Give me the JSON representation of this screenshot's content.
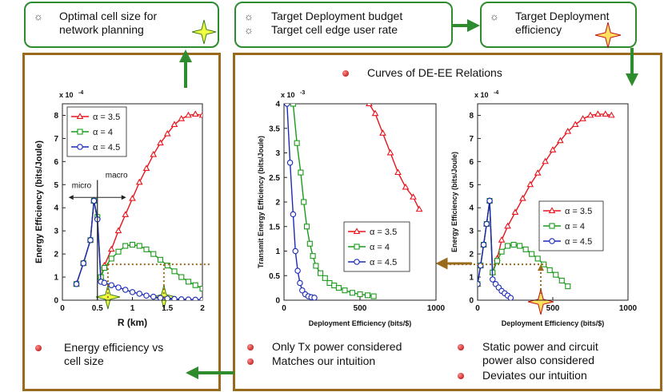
{
  "top_boxes": {
    "optimal": {
      "line1": "Optimal cell size for",
      "line2": "network planning"
    },
    "budget": {
      "line1": "Target Deployment budget",
      "line2": "Target cell edge user rate"
    },
    "efficiency": {
      "line1": "Target Deployment",
      "line2": "efficiency"
    }
  },
  "curves_title": "Curves of DE-EE Relations",
  "bullets": {
    "left": {
      "line1": "Energy efficiency vs",
      "line2": "cell size"
    },
    "mid1": "Only Tx power considered",
    "mid2": "Matches our intuition",
    "right1": {
      "line1": "Static power and circuit",
      "line2": "power also considered"
    },
    "right2": "Deviates our intuition"
  },
  "colors": {
    "green": "#2e8b2e",
    "brown": "#9a6a1c",
    "a35": "#e8141c",
    "a4": "#1a9a1a",
    "a45": "#1a2ab8"
  },
  "chart_data": [
    {
      "type": "line",
      "title": "",
      "xlabel": "R (km)",
      "ylabel": "Energy Efficiency (bits/Joule)",
      "y_scale_label": "x 10",
      "y_scale_exp": "-4",
      "xlim": [
        0,
        2
      ],
      "ylim": [
        0,
        8.5
      ],
      "xticks": [
        "0",
        "0.5",
        "1",
        "1.5",
        "2"
      ],
      "yticks": [
        "0",
        "1",
        "2",
        "3",
        "4",
        "5",
        "6",
        "7",
        "8"
      ],
      "annotations": [
        "micro",
        "macro"
      ],
      "series": [
        {
          "name": "α = 3.5",
          "x": [
            0.2,
            0.3,
            0.4,
            0.45,
            0.5,
            0.55,
            0.6,
            0.7,
            0.8,
            0.9,
            1.0,
            1.1,
            1.2,
            1.3,
            1.4,
            1.5,
            1.6,
            1.7,
            1.8,
            1.9,
            2.0
          ],
          "y": [
            0.7,
            1.6,
            2.6,
            4.3,
            3.6,
            1.0,
            1.5,
            2.2,
            3.0,
            3.7,
            4.4,
            5.1,
            5.7,
            6.3,
            6.8,
            7.2,
            7.6,
            7.85,
            8.0,
            8.05,
            8.0
          ]
        },
        {
          "name": "α = 4",
          "x": [
            0.2,
            0.3,
            0.4,
            0.45,
            0.5,
            0.55,
            0.6,
            0.7,
            0.8,
            0.9,
            1.0,
            1.1,
            1.2,
            1.3,
            1.4,
            1.5,
            1.6,
            1.7,
            1.8,
            1.9,
            2.0
          ],
          "y": [
            0.7,
            1.6,
            2.6,
            4.3,
            3.6,
            1.0,
            1.4,
            1.8,
            2.1,
            2.35,
            2.4,
            2.35,
            2.2,
            2.0,
            1.75,
            1.5,
            1.25,
            1.0,
            0.8,
            0.65,
            0.5
          ]
        },
        {
          "name": "α = 4.5",
          "x": [
            0.2,
            0.3,
            0.4,
            0.45,
            0.5,
            0.55,
            0.6,
            0.7,
            0.8,
            0.9,
            1.0,
            1.1,
            1.2,
            1.3,
            1.4,
            1.5,
            1.6,
            1.7,
            1.8,
            1.9,
            2.0
          ],
          "y": [
            0.7,
            1.6,
            2.6,
            4.3,
            3.5,
            0.8,
            0.75,
            0.65,
            0.55,
            0.45,
            0.35,
            0.28,
            0.2,
            0.15,
            0.1,
            0.07,
            0.05,
            0.04,
            0.03,
            0.02,
            0.02
          ]
        }
      ]
    },
    {
      "type": "line",
      "title": "",
      "xlabel": "Deployment Efficiency (bits/$)",
      "ylabel": "Transmit Energy Efficiency (bits/Joule)",
      "y_scale_label": "x 10",
      "y_scale_exp": "-3",
      "xlim": [
        0,
        1000
      ],
      "ylim": [
        0,
        4
      ],
      "xticks": [
        "0",
        "500",
        "1000"
      ],
      "yticks": [
        "0",
        "0.5",
        "1",
        "1.5",
        "2",
        "2.5",
        "3",
        "3.5",
        "4"
      ],
      "series": [
        {
          "name": "α = 3.5",
          "x": [
            560,
            600,
            650,
            700,
            750,
            800,
            850,
            890
          ],
          "y": [
            4.0,
            3.8,
            3.4,
            3.0,
            2.6,
            2.3,
            2.1,
            1.85
          ]
        },
        {
          "name": "α = 4",
          "x": [
            60,
            85,
            110,
            130,
            150,
            170,
            190,
            210,
            240,
            270,
            300,
            330,
            360,
            400,
            450,
            500,
            550,
            590
          ],
          "y": [
            4.0,
            3.2,
            2.6,
            2.0,
            1.5,
            1.15,
            0.9,
            0.7,
            0.55,
            0.45,
            0.35,
            0.3,
            0.25,
            0.2,
            0.15,
            0.12,
            0.1,
            0.08
          ]
        },
        {
          "name": "α = 4.5",
          "x": [
            20,
            40,
            60,
            75,
            90,
            105,
            120,
            140,
            160,
            180,
            200
          ],
          "y": [
            4.0,
            2.8,
            1.75,
            1.0,
            0.6,
            0.35,
            0.2,
            0.12,
            0.08,
            0.06,
            0.05
          ]
        }
      ]
    },
    {
      "type": "line",
      "title": "",
      "xlabel": "Deployment Efficiency (bits/$)",
      "ylabel": "Energy Efficiency (bits/Joule)",
      "y_scale_label": "x 10",
      "y_scale_exp": "-4",
      "xlim": [
        0,
        1000
      ],
      "ylim": [
        0,
        8.5
      ],
      "xticks": [
        "0",
        "500",
        "1000"
      ],
      "yticks": [
        "0",
        "1",
        "2",
        "3",
        "4",
        "5",
        "6",
        "7",
        "8"
      ],
      "series": [
        {
          "name": "α = 3.5",
          "x": [
            0,
            20,
            40,
            60,
            80,
            100,
            130,
            160,
            200,
            250,
            300,
            350,
            400,
            450,
            500,
            550,
            600,
            650,
            700,
            750,
            800,
            850,
            890
          ],
          "y": [
            0.7,
            1.5,
            2.4,
            3.3,
            4.3,
            1.2,
            1.8,
            2.6,
            3.2,
            3.8,
            4.4,
            5.0,
            5.5,
            6.0,
            6.5,
            6.9,
            7.3,
            7.6,
            7.85,
            8.0,
            8.05,
            8.05,
            8.0
          ]
        },
        {
          "name": "α = 4",
          "x": [
            0,
            20,
            40,
            60,
            80,
            100,
            130,
            160,
            200,
            240,
            280,
            320,
            360,
            400,
            440,
            480,
            520,
            560,
            600
          ],
          "y": [
            0.7,
            1.5,
            2.4,
            3.3,
            4.3,
            1.2,
            1.7,
            2.1,
            2.35,
            2.4,
            2.35,
            2.2,
            2.0,
            1.8,
            1.55,
            1.3,
            1.1,
            0.85,
            0.6
          ]
        },
        {
          "name": "α = 4.5",
          "x": [
            0,
            20,
            40,
            60,
            80,
            100,
            120,
            140,
            160,
            180,
            200,
            220
          ],
          "y": [
            0.7,
            1.5,
            2.4,
            3.3,
            4.3,
            0.9,
            0.7,
            0.55,
            0.4,
            0.3,
            0.2,
            0.1
          ]
        }
      ]
    }
  ]
}
